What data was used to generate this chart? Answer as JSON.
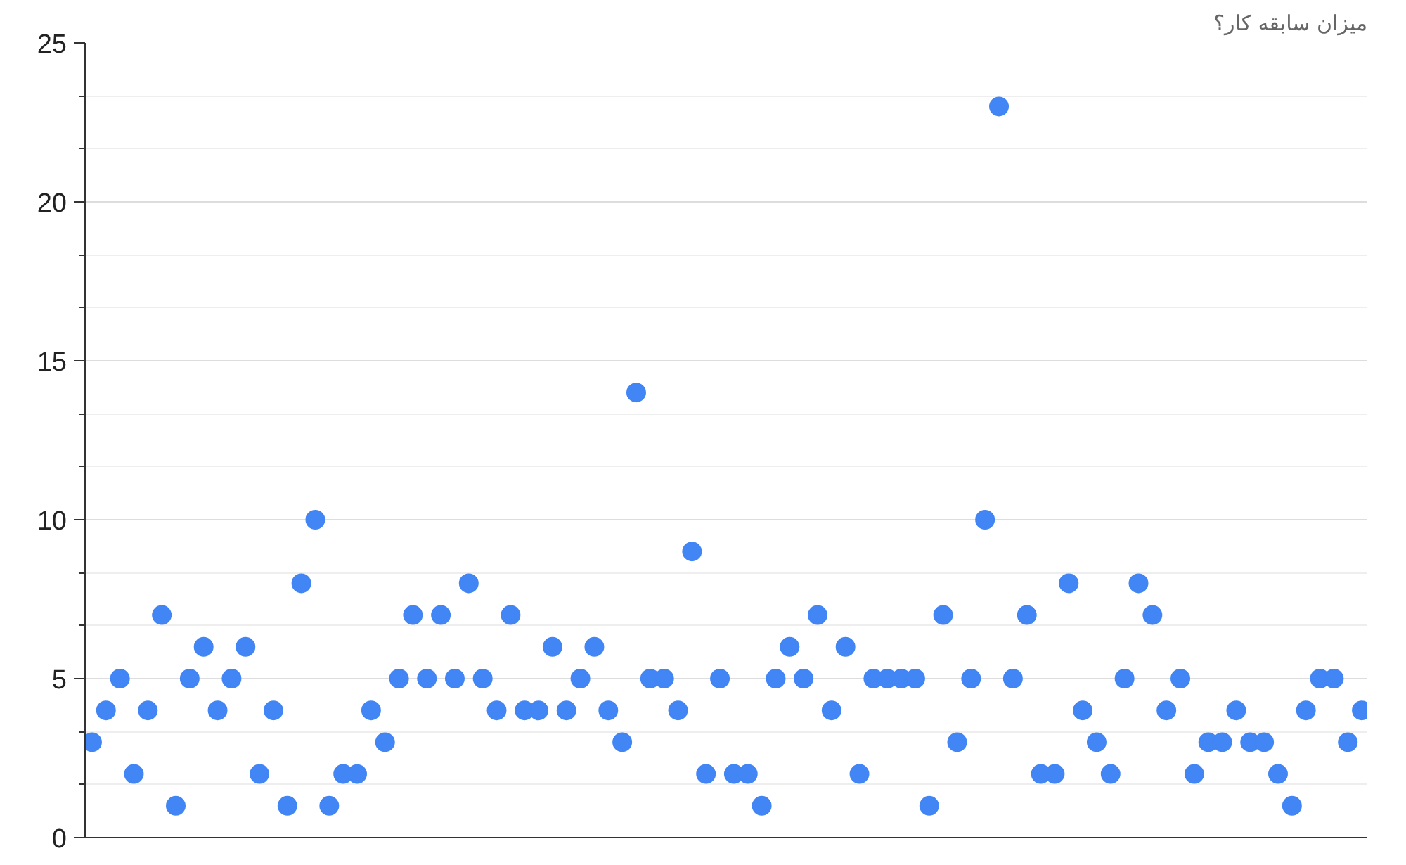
{
  "chart_data": {
    "type": "scatter",
    "title": "میزان سابقه کار؟",
    "categories": [
      null,
      null,
      null,
      null,
      null,
      null,
      null,
      null,
      null,
      null,
      null,
      null,
      null,
      null,
      null,
      null,
      null,
      null,
      null,
      null,
      null,
      null,
      null,
      null,
      null,
      null,
      null,
      null,
      null,
      null,
      null,
      null,
      null,
      null,
      null,
      null,
      null,
      null,
      null,
      null,
      null,
      null,
      null,
      null,
      null,
      null,
      null,
      null,
      null,
      null,
      null,
      null,
      null,
      null,
      null,
      null,
      null,
      null,
      null,
      null,
      null,
      null,
      null,
      null,
      null,
      null,
      null,
      null,
      null,
      null,
      null,
      null,
      null,
      null,
      null,
      null,
      null,
      null,
      null,
      null,
      null,
      null,
      null,
      null,
      null,
      null,
      null,
      null,
      null,
      null,
      null,
      null
    ],
    "series": [
      {
        "color": "#4285f4",
        "values": [
          3,
          4,
          5,
          2,
          4,
          7,
          1,
          5,
          6,
          4,
          5,
          6,
          2,
          4,
          1,
          8,
          10,
          1,
          2,
          2,
          4,
          3,
          5,
          7,
          5,
          7,
          5,
          8,
          5,
          4,
          7,
          4,
          4,
          6,
          4,
          5,
          6,
          4,
          3,
          14,
          5,
          5,
          4,
          9,
          2,
          5,
          2,
          2,
          1,
          5,
          6,
          5,
          7,
          4,
          6,
          2,
          5,
          5,
          5,
          5,
          1,
          7,
          3,
          5,
          10,
          23,
          5,
          7,
          2,
          2,
          8,
          4,
          3,
          2,
          5,
          8,
          7,
          4,
          5,
          2,
          3,
          3,
          4,
          3,
          3,
          2,
          1,
          4,
          5,
          5,
          3,
          4
        ]
      }
    ],
    "ylim": [
      0,
      25
    ],
    "yticks": [
      0,
      {
        "value": 1.667,
        "label": null
      },
      {
        "value": 3.333,
        "label": null
      },
      5,
      {
        "value": 6.667,
        "label": null
      },
      {
        "value": 8.333,
        "label": null
      },
      10,
      {
        "value": 11.667,
        "label": null
      },
      {
        "value": 13.333,
        "label": null
      },
      15,
      {
        "value": 16.667,
        "label": null
      },
      {
        "value": 18.333,
        "label": null
      },
      20,
      {
        "value": 21.667,
        "label": null
      },
      {
        "value": 23.333,
        "label": null
      },
      25
    ],
    "grid": "y",
    "marker": "circle",
    "tick_labels": "y"
  }
}
